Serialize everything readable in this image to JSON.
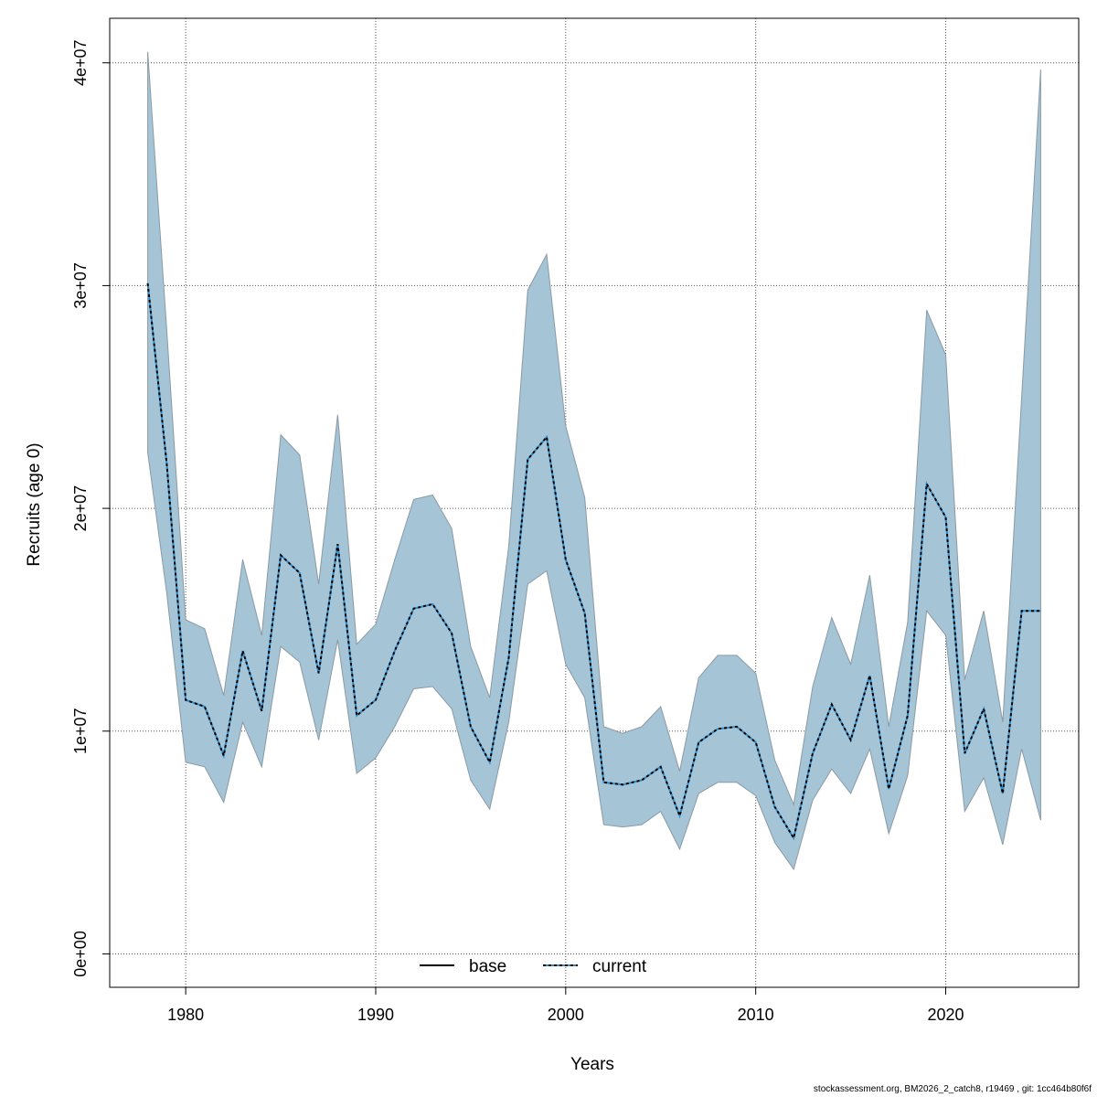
{
  "chart_data": {
    "type": "area",
    "xlabel": "Years",
    "ylabel": "Recruits (age 0)",
    "xlim": [
      1976,
      2027
    ],
    "ylim": [
      -1500000,
      42000000
    ],
    "xticks": [
      1980,
      1990,
      2000,
      2010,
      2020
    ],
    "yticks": [
      0,
      10000000,
      20000000,
      30000000,
      40000000
    ],
    "ytick_labels": [
      "0e+00",
      "1e+07",
      "2e+07",
      "3e+07",
      "4e+07"
    ],
    "grid": true,
    "legend_position": "bottom",
    "legend": [
      {
        "label": "base",
        "style": "solid",
        "color": "#000000"
      },
      {
        "label": "current",
        "style": "dotted",
        "color": "#1f6fa5"
      }
    ],
    "colors": {
      "band": "#a5c4d6",
      "band_border": "#8a9aa4",
      "line": "#000000",
      "line_accent": "#2a8ccc"
    },
    "x": [
      1978,
      1979,
      1980,
      1981,
      1982,
      1983,
      1984,
      1985,
      1986,
      1987,
      1988,
      1989,
      1990,
      1991,
      1992,
      1993,
      1994,
      1995,
      1996,
      1997,
      1998,
      1999,
      2000,
      2001,
      2002,
      2003,
      2004,
      2005,
      2006,
      2007,
      2008,
      2009,
      2010,
      2011,
      2012,
      2013,
      2014,
      2015,
      2016,
      2017,
      2018,
      2019,
      2020,
      2021,
      2022,
      2023,
      2024,
      2025
    ],
    "series": [
      {
        "role": "estimate",
        "values": [
          30100000,
          22000000,
          11400000,
          11100000,
          8900000,
          13600000,
          10900000,
          17900000,
          17100000,
          12600000,
          18400000,
          10700000,
          11400000,
          13600000,
          15500000,
          15700000,
          14400000,
          10200000,
          8600000,
          13300000,
          22200000,
          23200000,
          17700000,
          15300000,
          7700000,
          7600000,
          7800000,
          8400000,
          6200000,
          9500000,
          10100000,
          10200000,
          9500000,
          6600000,
          5200000,
          9000000,
          11200000,
          9600000,
          12500000,
          7400000,
          10700000,
          21100000,
          19600000,
          9000000,
          11000000,
          7200000,
          15400000,
          15400000
        ]
      },
      {
        "role": "upper",
        "values": [
          40500000,
          28000000,
          15000000,
          14600000,
          11600000,
          17700000,
          14300000,
          23300000,
          22400000,
          16600000,
          24200000,
          13900000,
          14800000,
          17700000,
          20400000,
          20600000,
          19100000,
          13800000,
          11500000,
          18300000,
          29800000,
          31400000,
          23700000,
          20500000,
          10200000,
          9900000,
          10200000,
          11100000,
          8200000,
          12400000,
          13400000,
          13400000,
          12600000,
          8700000,
          6700000,
          12000000,
          15100000,
          13000000,
          17000000,
          10200000,
          14900000,
          28900000,
          26900000,
          12300000,
          15400000,
          10400000,
          25000000,
          39700000
        ]
      },
      {
        "role": "lower",
        "values": [
          22500000,
          16200000,
          8600000,
          8400000,
          6800000,
          10400000,
          8400000,
          13800000,
          13100000,
          9600000,
          14100000,
          8100000,
          8800000,
          10200000,
          11900000,
          12000000,
          11000000,
          7800000,
          6500000,
          10400000,
          16600000,
          17200000,
          13000000,
          11500000,
          5800000,
          5700000,
          5800000,
          6400000,
          4700000,
          7200000,
          7700000,
          7700000,
          7100000,
          5000000,
          3800000,
          6900000,
          8300000,
          7200000,
          9200000,
          5400000,
          8000000,
          15400000,
          14300000,
          6400000,
          7900000,
          4900000,
          9200000,
          6000000
        ]
      }
    ]
  },
  "footer": "stockassessment.org, BM2026_2_catch8, r19469 , git: 1cc464b80f6f"
}
